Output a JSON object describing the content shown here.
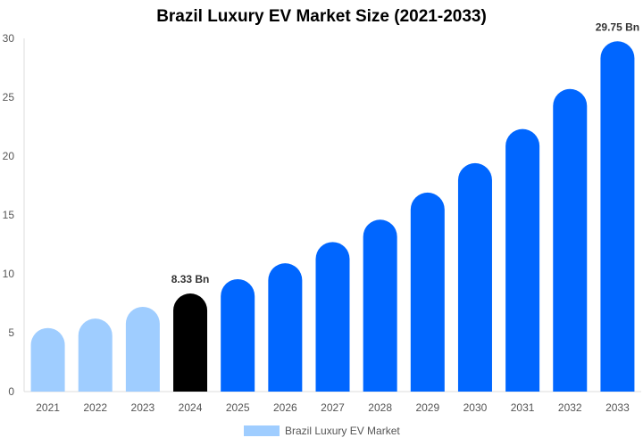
{
  "chart_data": {
    "type": "bar",
    "title": "Brazil Luxury EV Market Size (2021-2033)",
    "categories": [
      "2021",
      "2022",
      "2023",
      "2024",
      "2025",
      "2026",
      "2027",
      "2028",
      "2029",
      "2030",
      "2031",
      "2032",
      "2033"
    ],
    "series": [
      {
        "name": "Brazil Luxury EV Market",
        "values": [
          5.4,
          6.2,
          7.2,
          8.33,
          9.55,
          10.9,
          12.7,
          14.6,
          16.9,
          19.4,
          22.3,
          25.7,
          29.75
        ]
      }
    ],
    "data_labels": [
      {
        "category": "2024",
        "text": "8.33 Bn"
      },
      {
        "category": "2033",
        "text": "29.75 Bn"
      }
    ],
    "ylim": [
      0,
      30
    ],
    "yticks": [
      0,
      5,
      10,
      15,
      20,
      25,
      30
    ],
    "xlabel": "",
    "ylabel": "",
    "grid": false,
    "legend": "bottom",
    "colors": {
      "historical": "#9fcdff",
      "base_year": "#000000",
      "forecast": "#0066ff",
      "legend": "#9fcdff"
    }
  }
}
